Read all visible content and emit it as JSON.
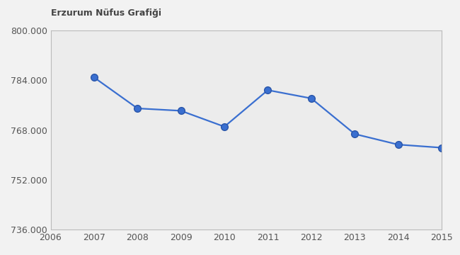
{
  "chart_data": {
    "type": "line",
    "title": "Erzurum Nüfus Grafiği",
    "x": [
      2007,
      2008,
      2009,
      2010,
      2011,
      2012,
      2013,
      2014,
      2015
    ],
    "values": [
      784941,
      774967,
      774207,
      769085,
      780847,
      778195,
      766729,
      763320,
      762321
    ],
    "color": "#3a6fd0",
    "marker": "o",
    "line_style": "solid",
    "xlim": [
      2006,
      2015
    ],
    "xticks": [
      2006,
      2007,
      2008,
      2009,
      2010,
      2011,
      2012,
      2013,
      2014,
      2015
    ],
    "ylim": [
      736000,
      800000
    ],
    "yticks": [
      {
        "value": 736000,
        "label": "736.000"
      },
      {
        "value": 752000,
        "label": "752.000"
      },
      {
        "value": 768000,
        "label": "768.000"
      },
      {
        "value": 784000,
        "label": "784.000"
      },
      {
        "value": 800000,
        "label": "800.000"
      }
    ],
    "grid": false
  }
}
